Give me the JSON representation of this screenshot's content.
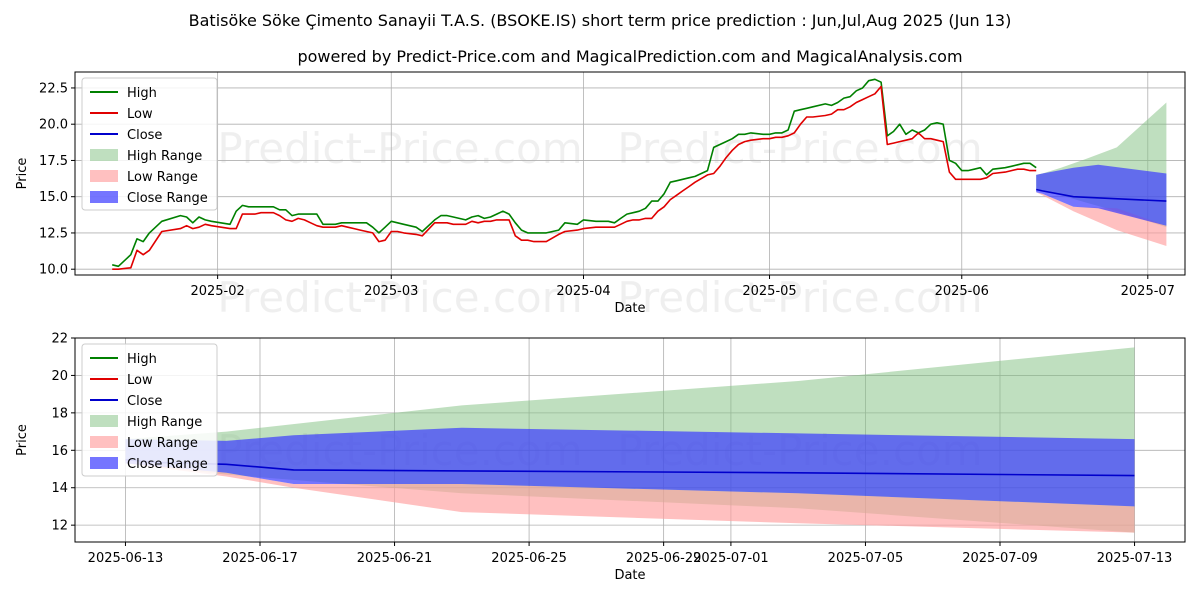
{
  "title": "Batisöke Söke Çimento Sanayii T.A.S. (BSOKE.IS) short term price prediction : Jun,Jul,Aug 2025 (Jun 13)",
  "subtitle": "powered by Predict-Price.com and MagicalPrediction.com and MagicalAnalysis.com",
  "watermark": "Predict-Price.com",
  "colors": {
    "high": "#008000",
    "low": "#e00000",
    "close": "#0000cc",
    "high_range": "#7fbf7f",
    "low_range": "#ff9e9e",
    "close_range": "#3b3bff"
  },
  "legend": {
    "high": "High",
    "low": "Low",
    "close": "Close",
    "high_range": "High Range",
    "low_range": "Low Range",
    "close_range": "Close Range"
  },
  "chart_data": [
    {
      "type": "line",
      "xlabel": "Date",
      "ylabel": "Price",
      "ylim": [
        9.6,
        23.6
      ],
      "xlim": [
        -6,
        173
      ],
      "x_unit": "days since 2025-01-15",
      "y_ticks": [
        "10.0",
        "12.5",
        "15.0",
        "17.5",
        "20.0",
        "22.5"
      ],
      "y_tick_values": [
        10,
        12.5,
        15,
        17.5,
        20,
        22.5
      ],
      "x_ticks": [
        "2025-02",
        "2025-03",
        "2025-04",
        "2025-05",
        "2025-06",
        "2025-07"
      ],
      "x_tick_values": [
        17,
        45,
        76,
        106,
        137,
        167
      ],
      "legend_position": "upper-left",
      "grid": true,
      "series": [
        {
          "name": "High",
          "x": [
            0,
            1,
            3,
            4,
            5,
            6,
            8,
            11,
            12,
            13,
            14,
            15,
            16,
            19,
            20,
            21,
            22,
            23,
            24,
            26,
            27,
            28,
            29,
            30,
            31,
            32,
            33,
            34,
            36,
            37,
            38,
            39,
            40,
            41,
            42,
            43,
            44,
            45,
            46,
            47,
            49,
            50,
            52,
            53,
            54,
            55,
            57,
            58,
            59,
            60,
            61,
            62,
            63,
            64,
            65,
            66,
            67,
            68,
            69,
            70,
            72,
            73,
            75,
            76,
            78,
            79,
            80,
            81,
            82,
            83,
            84,
            85,
            86,
            87,
            88,
            89,
            90,
            91,
            92,
            93,
            94,
            96,
            97,
            98,
            99,
            100,
            101,
            102,
            103,
            105,
            106,
            107,
            108,
            109,
            110,
            111,
            112,
            113,
            115,
            116,
            117,
            118,
            119,
            120,
            121,
            122,
            123,
            124,
            125,
            126,
            127,
            128,
            129,
            130,
            131,
            132,
            133,
            134,
            135,
            136,
            137,
            138,
            139,
            140,
            141,
            142,
            144,
            145,
            146,
            147,
            148,
            149
          ],
          "values": [
            10.3,
            10.2,
            11.0,
            12.1,
            11.9,
            12.5,
            13.3,
            13.7,
            13.6,
            13.2,
            13.6,
            13.4,
            13.3,
            13.1,
            14.0,
            14.4,
            14.3,
            14.3,
            14.3,
            14.3,
            14.1,
            14.1,
            13.7,
            13.8,
            13.8,
            13.8,
            13.8,
            13.1,
            13.1,
            13.2,
            13.2,
            13.2,
            13.2,
            13.2,
            12.9,
            12.5,
            12.9,
            13.3,
            13.2,
            13.1,
            12.9,
            12.6,
            13.4,
            13.7,
            13.7,
            13.6,
            13.4,
            13.6,
            13.7,
            13.5,
            13.6,
            13.8,
            14.0,
            13.8,
            13.2,
            12.7,
            12.5,
            12.5,
            12.5,
            12.5,
            12.7,
            13.2,
            13.1,
            13.4,
            13.3,
            13.3,
            13.3,
            13.2,
            13.5,
            13.8,
            13.9,
            14.0,
            14.2,
            14.7,
            14.7,
            15.2,
            16.0,
            16.1,
            16.2,
            16.3,
            16.4,
            16.8,
            18.4,
            18.6,
            18.8,
            19.0,
            19.3,
            19.3,
            19.4,
            19.3,
            19.3,
            19.4,
            19.4,
            19.6,
            20.9,
            21.0,
            21.1,
            21.2,
            21.4,
            21.3,
            21.5,
            21.8,
            21.9,
            22.3,
            22.5,
            23.0,
            23.1,
            22.9,
            19.2,
            19.5,
            20.0,
            19.3,
            19.6,
            19.4,
            19.6,
            20.0,
            20.1,
            20.0,
            17.5,
            17.3,
            16.8,
            16.8,
            16.9,
            17.0,
            16.5,
            16.9,
            17.0,
            17.1,
            17.2,
            17.3,
            17.3,
            17.0
          ],
          "x_unit": "days since 2025-01-15"
        },
        {
          "name": "Low",
          "x": [
            0,
            1,
            3,
            4,
            5,
            6,
            8,
            11,
            12,
            13,
            14,
            15,
            16,
            19,
            20,
            21,
            22,
            23,
            24,
            26,
            27,
            28,
            29,
            30,
            31,
            32,
            33,
            34,
            36,
            37,
            38,
            39,
            40,
            41,
            42,
            43,
            44,
            45,
            46,
            47,
            49,
            50,
            52,
            53,
            54,
            55,
            57,
            58,
            59,
            60,
            61,
            62,
            63,
            64,
            65,
            66,
            67,
            68,
            69,
            70,
            72,
            73,
            75,
            76,
            78,
            79,
            80,
            81,
            82,
            83,
            84,
            85,
            86,
            87,
            88,
            89,
            90,
            91,
            92,
            93,
            94,
            96,
            97,
            98,
            99,
            100,
            101,
            102,
            103,
            105,
            106,
            107,
            108,
            109,
            110,
            111,
            112,
            113,
            115,
            116,
            117,
            118,
            119,
            120,
            121,
            122,
            123,
            124,
            125,
            126,
            127,
            128,
            129,
            130,
            131,
            132,
            133,
            134,
            135,
            136,
            137,
            138,
            139,
            140,
            141,
            142,
            144,
            145,
            146,
            147,
            148,
            149
          ],
          "values": [
            10.0,
            10.0,
            10.1,
            11.3,
            11.0,
            11.3,
            12.6,
            12.8,
            13.0,
            12.8,
            12.9,
            13.1,
            13.0,
            12.8,
            12.8,
            13.8,
            13.8,
            13.8,
            13.9,
            13.9,
            13.7,
            13.4,
            13.3,
            13.5,
            13.4,
            13.2,
            13.0,
            12.9,
            12.9,
            13.0,
            12.9,
            12.8,
            12.7,
            12.6,
            12.5,
            11.9,
            12.0,
            12.6,
            12.6,
            12.5,
            12.4,
            12.3,
            13.2,
            13.2,
            13.2,
            13.1,
            13.1,
            13.3,
            13.2,
            13.3,
            13.3,
            13.4,
            13.4,
            13.4,
            12.3,
            12.0,
            12.0,
            11.9,
            11.9,
            11.9,
            12.4,
            12.6,
            12.7,
            12.8,
            12.9,
            12.9,
            12.9,
            12.9,
            13.1,
            13.3,
            13.4,
            13.4,
            13.5,
            13.5,
            14.0,
            14.3,
            14.8,
            15.1,
            15.4,
            15.7,
            16.0,
            16.5,
            16.6,
            17.1,
            17.7,
            18.2,
            18.6,
            18.8,
            18.9,
            19.0,
            19.0,
            19.1,
            19.1,
            19.2,
            19.4,
            20.0,
            20.5,
            20.5,
            20.6,
            20.7,
            21.0,
            21.0,
            21.2,
            21.5,
            21.7,
            21.9,
            22.1,
            22.6,
            18.6,
            18.7,
            18.8,
            18.9,
            19.0,
            19.4,
            19.0,
            19.0,
            18.9,
            18.8,
            16.7,
            16.2,
            16.2,
            16.2,
            16.2,
            16.2,
            16.3,
            16.6,
            16.7,
            16.8,
            16.9,
            16.9,
            16.8,
            16.8
          ],
          "x_unit": "days since 2025-01-15"
        },
        {
          "name": "Close",
          "x": [
            149,
            150,
            155,
            170
          ],
          "values": [
            15.5,
            15.4,
            15.0,
            14.7
          ],
          "x_unit": "days since 2025-01-15"
        }
      ],
      "ranges": [
        {
          "name": "High Range",
          "x": [
            149,
            150,
            153,
            157,
            162,
            170
          ],
          "lower": [
            16.5,
            16.6,
            17.0,
            17.6,
            18.4,
            21.5
          ],
          "upper": [
            16.5,
            16.6,
            17.0,
            17.6,
            18.4,
            21.5
          ],
          "baseline": [
            15.5,
            15.4,
            15.1,
            14.6,
            14.0,
            12.9
          ]
        },
        {
          "name": "Low Range",
          "x": [
            149,
            150,
            155,
            162,
            170
          ],
          "upper": [
            15.3,
            15.2,
            14.3,
            14.2,
            13.0
          ],
          "lower": [
            15.3,
            15.1,
            14.0,
            12.7,
            11.6
          ]
        },
        {
          "name": "Close Range",
          "x": [
            149,
            150,
            155,
            159,
            170
          ],
          "upper": [
            16.5,
            16.6,
            17.0,
            17.2,
            16.6
          ],
          "lower": [
            15.3,
            15.2,
            14.3,
            14.2,
            13.0
          ]
        }
      ]
    },
    {
      "type": "line",
      "xlabel": "Date",
      "ylabel": "Price",
      "ylim": [
        11.1,
        22.0
      ],
      "xlim": [
        -1.5,
        31.5
      ],
      "x_unit": "days since 2025-06-13",
      "y_ticks": [
        "12",
        "14",
        "16",
        "18",
        "20",
        "22"
      ],
      "y_tick_values": [
        12,
        14,
        16,
        18,
        20,
        22
      ],
      "x_ticks": [
        "2025-06-13",
        "2025-06-17",
        "2025-06-21",
        "2025-06-25",
        "2025-06-29",
        "2025-07-01",
        "2025-07-05",
        "2025-07-09",
        "2025-07-13"
      ],
      "x_tick_values": [
        0,
        4,
        8,
        12,
        16,
        18,
        22,
        26,
        30
      ],
      "legend_position": "upper-left",
      "grid": true,
      "series": [
        {
          "name": "High",
          "x": [],
          "values": []
        },
        {
          "name": "Low",
          "x": [],
          "values": []
        },
        {
          "name": "Close",
          "x": [
            0,
            1,
            3,
            5,
            10,
            20,
            30
          ],
          "values": [
            15.5,
            15.35,
            15.25,
            14.95,
            14.9,
            14.8,
            14.65
          ]
        }
      ],
      "ranges": [
        {
          "name": "High Range",
          "x": [
            0,
            3,
            10,
            20,
            30
          ],
          "upper": [
            16.6,
            17.0,
            18.4,
            19.7,
            21.5
          ],
          "lower": [
            15.3,
            14.7,
            13.7,
            12.9,
            11.6
          ]
        },
        {
          "name": "Low Range",
          "x": [
            0,
            3,
            5,
            10,
            20,
            30
          ],
          "upper": [
            15.5,
            14.8,
            14.2,
            14.2,
            13.7,
            13.0
          ],
          "lower": [
            15.3,
            14.6,
            14.0,
            12.7,
            12.1,
            11.6
          ]
        },
        {
          "name": "Close Range",
          "x": [
            0,
            3,
            5,
            10,
            20,
            30
          ],
          "upper": [
            16.6,
            16.5,
            16.8,
            17.2,
            16.9,
            16.6
          ],
          "lower": [
            15.3,
            14.8,
            14.2,
            14.2,
            13.7,
            13.0
          ]
        }
      ]
    }
  ]
}
